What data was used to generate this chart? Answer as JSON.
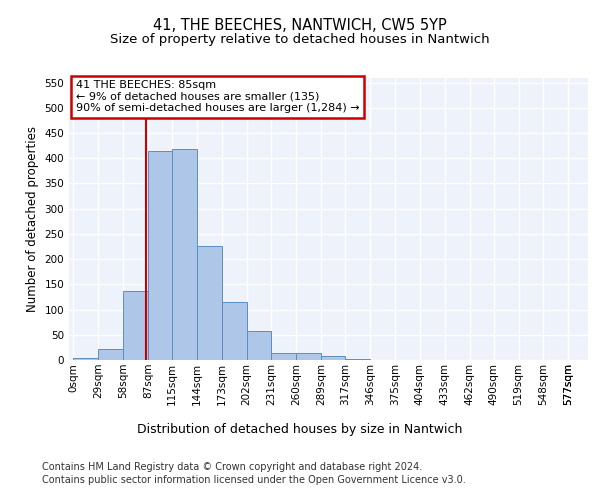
{
  "title": "41, THE BEECHES, NANTWICH, CW5 5YP",
  "subtitle": "Size of property relative to detached houses in Nantwich",
  "xlabel": "Distribution of detached houses by size in Nantwich",
  "ylabel": "Number of detached properties",
  "bin_edges": [
    0,
    29,
    58,
    87,
    115,
    144,
    173,
    202,
    231,
    260,
    289,
    317,
    346,
    375,
    404,
    433,
    462,
    490,
    519,
    548,
    577
  ],
  "bar_heights": [
    3,
    22,
    137,
    415,
    418,
    225,
    115,
    58,
    13,
    13,
    7,
    1,
    0,
    0,
    0,
    0,
    0,
    0,
    0,
    0
  ],
  "bar_color": "#aec6e8",
  "bar_edge_color": "#5a8fc2",
  "ylim": [
    0,
    560
  ],
  "yticks": [
    0,
    50,
    100,
    150,
    200,
    250,
    300,
    350,
    400,
    450,
    500,
    550
  ],
  "property_size": 85,
  "red_line_color": "#cc0000",
  "annotation_line1": "41 THE BEECHES: 85sqm",
  "annotation_line2": "← 9% of detached houses are smaller (135)",
  "annotation_line3": "90% of semi-detached houses are larger (1,284) →",
  "footer_line1": "Contains HM Land Registry data © Crown copyright and database right 2024.",
  "footer_line2": "Contains public sector information licensed under the Open Government Licence v3.0.",
  "background_color": "#eef2fb",
  "grid_color": "#ffffff",
  "title_fontsize": 10.5,
  "subtitle_fontsize": 9.5,
  "xlabel_fontsize": 9,
  "ylabel_fontsize": 8.5,
  "tick_fontsize": 7.5,
  "annotation_fontsize": 8,
  "footer_fontsize": 7,
  "xlim_left": -5,
  "xlim_right": 600
}
